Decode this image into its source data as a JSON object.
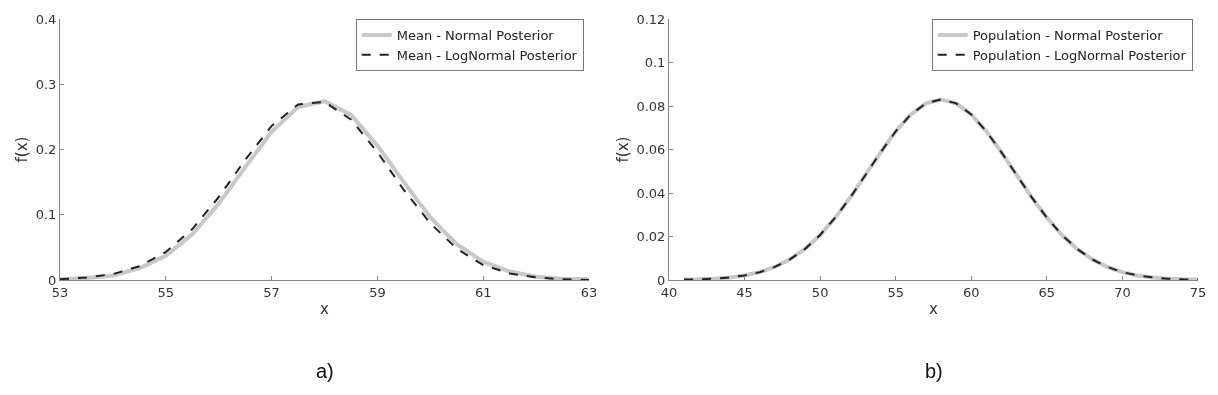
{
  "chart_data": [
    {
      "type": "line",
      "xlabel": "x",
      "ylabel": "f(x)",
      "x": [
        53,
        53.5,
        54,
        54.5,
        55,
        55.5,
        56,
        56.5,
        57,
        57.5,
        58,
        58.5,
        59,
        59.5,
        60,
        60.5,
        61,
        61.5,
        62,
        62.5,
        63
      ],
      "series": [
        {
          "name": "Mean - Normal Posterior",
          "color": "#c8c8c8",
          "line_style": "solid",
          "values": [
            0.001,
            0.003,
            0.007,
            0.018,
            0.037,
            0.07,
            0.117,
            0.173,
            0.227,
            0.265,
            0.274,
            0.253,
            0.206,
            0.15,
            0.096,
            0.055,
            0.028,
            0.013,
            0.005,
            0.002,
            0.001
          ]
        },
        {
          "name": "Mean - LogNormal Posterior",
          "color": "#222222",
          "line_style": "dashed",
          "values": [
            0.001,
            0.004,
            0.009,
            0.021,
            0.043,
            0.078,
            0.127,
            0.184,
            0.236,
            0.269,
            0.273,
            0.246,
            0.196,
            0.138,
            0.087,
            0.048,
            0.023,
            0.01,
            0.004,
            0.001,
            0.0
          ]
        }
      ],
      "xlim": [
        53,
        63
      ],
      "xticks": [
        53,
        55,
        57,
        59,
        61,
        63
      ],
      "ylim": [
        0,
        0.4
      ],
      "yticks": [
        0,
        0.1,
        0.2,
        0.3,
        0.4
      ],
      "grid": false,
      "legend": "top right",
      "marker": "none",
      "annotations": [
        "a)"
      ]
    },
    {
      "type": "line",
      "xlabel": "x",
      "ylabel": "f(x)",
      "x": [
        41,
        42,
        43,
        44,
        45,
        46,
        47,
        48,
        49,
        50,
        51,
        52,
        53,
        54,
        55,
        56,
        57,
        58,
        59,
        60,
        61,
        62,
        63,
        64,
        65,
        66,
        67,
        68,
        69,
        70,
        71,
        72,
        73,
        74,
        75
      ],
      "series": [
        {
          "name": "Population - Normal Posterior",
          "color": "#c8c8c8",
          "line_style": "solid",
          "values": [
            0.0002,
            0.0003,
            0.0006,
            0.0012,
            0.0021,
            0.0036,
            0.006,
            0.0095,
            0.0143,
            0.0207,
            0.0287,
            0.038,
            0.0483,
            0.0587,
            0.0683,
            0.0761,
            0.0812,
            0.083,
            0.0812,
            0.0761,
            0.0683,
            0.0587,
            0.0483,
            0.038,
            0.0287,
            0.0207,
            0.0143,
            0.0095,
            0.006,
            0.0036,
            0.0021,
            0.0012,
            0.0006,
            0.0003,
            0.0002
          ]
        },
        {
          "name": "Population - LogNormal Posterior",
          "color": "#222222",
          "line_style": "dashed",
          "values": [
            0.0002,
            0.0003,
            0.0006,
            0.0012,
            0.0021,
            0.0036,
            0.006,
            0.0095,
            0.0143,
            0.0207,
            0.0287,
            0.038,
            0.0483,
            0.0587,
            0.0683,
            0.0761,
            0.0812,
            0.083,
            0.0812,
            0.0761,
            0.0683,
            0.0587,
            0.0483,
            0.038,
            0.0287,
            0.0207,
            0.0143,
            0.0095,
            0.006,
            0.0036,
            0.0021,
            0.0012,
            0.0006,
            0.0003,
            0.0002
          ]
        }
      ],
      "xlim": [
        40,
        75
      ],
      "xticks": [
        40,
        45,
        50,
        55,
        60,
        65,
        70,
        75
      ],
      "ylim": [
        0,
        0.12
      ],
      "yticks": [
        0,
        0.02,
        0.04,
        0.06,
        0.08,
        0.1,
        0.12
      ],
      "grid": false,
      "legend": "top right",
      "marker": "none",
      "annotations": [
        "b)"
      ]
    }
  ]
}
